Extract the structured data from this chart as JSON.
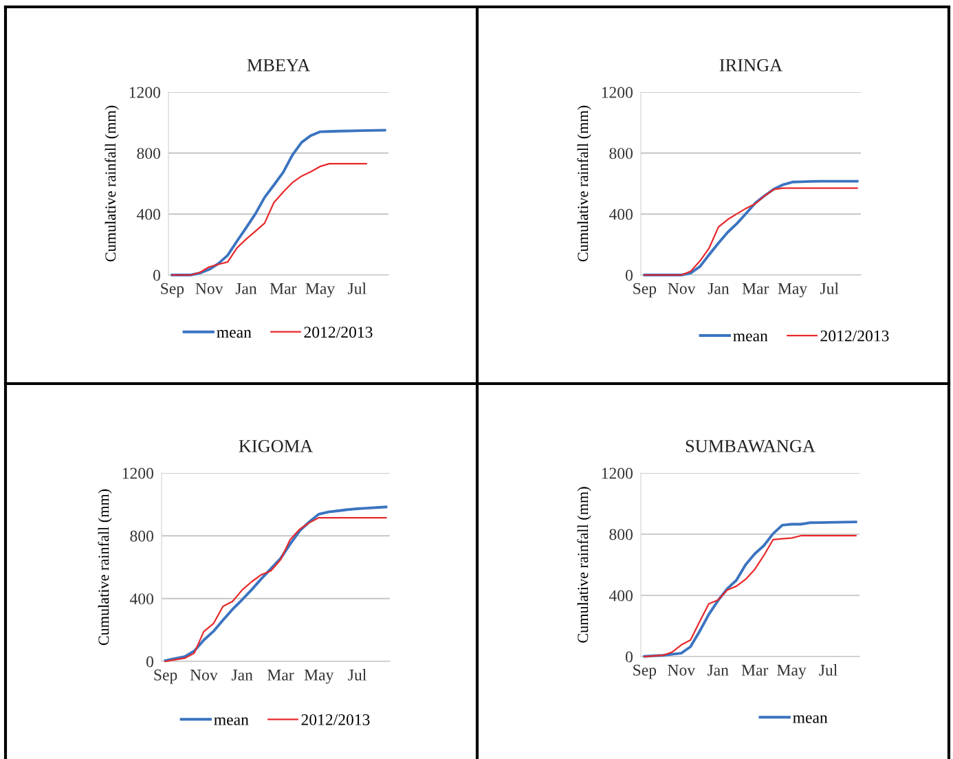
{
  "chart_data": [
    {
      "type": "line",
      "title": "MBEYA",
      "ylabel": "Cumulative rainfall (mm)",
      "categories": [
        "Sep",
        null,
        null,
        null,
        "Nov",
        null,
        null,
        null,
        "Jan",
        null,
        null,
        null,
        "Mar",
        null,
        null,
        null,
        "May",
        null,
        null,
        null,
        "Jul",
        null,
        null,
        null
      ],
      "ylim": [
        0,
        1200
      ],
      "yticks": [
        0,
        400,
        800,
        1200
      ],
      "grid": "y",
      "legend": "bottom",
      "series": [
        {
          "name": "mean",
          "color": "#3b74c0",
          "values": [
            0,
            0,
            0,
            13,
            36,
            75,
            129,
            221,
            310,
            401,
            509,
            590,
            673,
            787,
            870,
            915,
            940,
            942,
            944,
            945,
            947,
            948,
            949,
            950
          ]
        },
        {
          "name": "2012/2013",
          "color": "#e8282a",
          "values": [
            0,
            0,
            0,
            17,
            53,
            70,
            85,
            177,
            235,
            287,
            340,
            475,
            544,
            606,
            649,
            678,
            712,
            730,
            730,
            730,
            730,
            730,
            null,
            null
          ]
        }
      ]
    },
    {
      "type": "line",
      "title": "IRINGA",
      "ylabel": "Cumulative rainfall (mm)",
      "categories": [
        "Sep",
        null,
        null,
        null,
        "Nov",
        null,
        null,
        null,
        "Jan",
        null,
        null,
        null,
        "Mar",
        null,
        null,
        null,
        "May",
        null,
        null,
        null,
        "Jul",
        null,
        null,
        null
      ],
      "ylim": [
        0,
        1200
      ],
      "yticks": [
        0,
        400,
        800,
        1200
      ],
      "grid": "y",
      "legend": "bottom right",
      "series": [
        {
          "name": "mean",
          "color": "#3b74c0",
          "values": [
            0,
            0,
            0,
            0,
            0,
            13,
            56,
            134,
            210,
            281,
            338,
            405,
            474,
            521,
            564,
            593,
            610,
            612,
            614,
            615,
            615,
            615,
            615,
            615
          ]
        },
        {
          "name": "2012/2013",
          "color": "#e8282a",
          "values": [
            0,
            0,
            0,
            0,
            0,
            25,
            92,
            178,
            315,
            364,
            402,
            438,
            468,
            520,
            562,
            570,
            570,
            570,
            570,
            570,
            570,
            570,
            570,
            570
          ]
        }
      ]
    },
    {
      "type": "line",
      "title": "KIGOMA",
      "ylabel": "Cumulative rainfall (mm)",
      "categories": [
        "Sep",
        null,
        null,
        null,
        "Nov",
        null,
        null,
        null,
        "Jan",
        null,
        null,
        null,
        "Mar",
        null,
        null,
        null,
        "May",
        null,
        null,
        null,
        "Jul",
        null,
        null,
        null
      ],
      "ylim": [
        0,
        1200
      ],
      "yticks": [
        0,
        400,
        800,
        1200
      ],
      "grid": "y",
      "legend": "bottom",
      "series": [
        {
          "name": "mean",
          "color": "#3b74c0",
          "values": [
            5,
            18,
            30,
            66,
            136,
            191,
            263,
            332,
            393,
            457,
            526,
            591,
            655,
            747,
            832,
            889,
            938,
            952,
            959,
            967,
            972,
            976,
            980,
            984
          ]
        },
        {
          "name": "2012/2013",
          "color": "#e8282a",
          "values": [
            0,
            10,
            20,
            52,
            190,
            240,
            350,
            382,
            455,
            508,
            552,
            577,
            647,
            775,
            842,
            883,
            915,
            915,
            915,
            915,
            915,
            915,
            915,
            915
          ]
        }
      ]
    },
    {
      "type": "line",
      "title": "SUMBAWANGA",
      "ylabel": "Cumulative rainfall (mm)",
      "categories": [
        "Sep",
        null,
        null,
        null,
        "Nov",
        null,
        null,
        null,
        "Jan",
        null,
        null,
        null,
        "Mar",
        null,
        null,
        null,
        "May",
        null,
        null,
        null,
        "Jul",
        null,
        null,
        null
      ],
      "ylim": [
        0,
        1200
      ],
      "yticks": [
        0,
        400,
        800,
        1200
      ],
      "grid": "y",
      "legend": "bottom right",
      "series": [
        {
          "name": "mean",
          "color": "#3b74c0",
          "values": [
            1,
            5,
            8,
            15,
            22,
            64,
            165,
            276,
            366,
            443,
            499,
            600,
            672,
            726,
            804,
            859,
            865,
            865,
            875,
            876,
            877,
            878,
            879,
            880
          ]
        },
        {
          "color": "#e8282a",
          "values": [
            0,
            4,
            8,
            29,
            76,
            108,
            228,
            345,
            370,
            435,
            460,
            505,
            570,
            662,
            765,
            770,
            775,
            790,
            790,
            790,
            790,
            790,
            790,
            790
          ]
        }
      ]
    }
  ]
}
